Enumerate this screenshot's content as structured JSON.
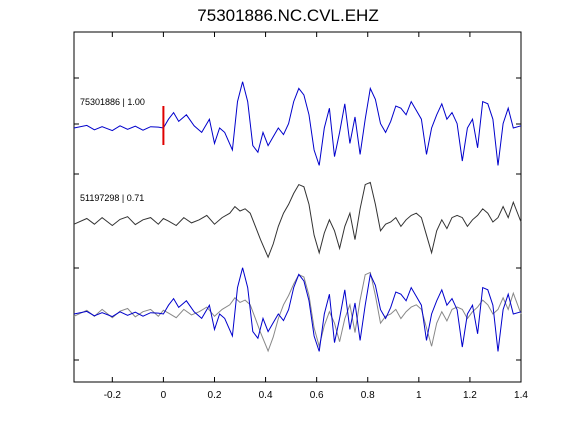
{
  "chart_data": {
    "type": "line",
    "title": "75301886.NC.CVL.EHZ",
    "xlim": [
      -0.35,
      1.4
    ],
    "x_ticks": [
      "-0.2",
      "0",
      "0.2",
      "0.4",
      "0.6",
      "0.8",
      "1",
      "1.2",
      "1.4"
    ],
    "x_tick_values": [
      -0.2,
      0,
      0.2,
      0.4,
      0.6,
      0.8,
      1.0,
      1.2,
      1.4
    ],
    "grid": false,
    "pick_marker": {
      "x": 0,
      "color": "#e00000"
    },
    "colors": {
      "master": "#0000cc",
      "correlated": "#333333",
      "overlay_gray": "#888888",
      "pick": "#e00000"
    },
    "traces": [
      {
        "label": "75301886 | 1.00",
        "color": "#0000cc",
        "x": [
          -0.35,
          -0.3,
          -0.27,
          -0.24,
          -0.2,
          -0.17,
          -0.14,
          -0.11,
          -0.08,
          -0.05,
          -0.02,
          0.0,
          0.02,
          0.04,
          0.06,
          0.09,
          0.12,
          0.15,
          0.18,
          0.2,
          0.22,
          0.24,
          0.27,
          0.29,
          0.31,
          0.33,
          0.35,
          0.37,
          0.39,
          0.41,
          0.43,
          0.45,
          0.47,
          0.49,
          0.51,
          0.53,
          0.55,
          0.57,
          0.59,
          0.61,
          0.63,
          0.65,
          0.67,
          0.69,
          0.71,
          0.73,
          0.75,
          0.77,
          0.79,
          0.81,
          0.83,
          0.85,
          0.87,
          0.89,
          0.91,
          0.93,
          0.95,
          0.97,
          0.99,
          1.01,
          1.03,
          1.05,
          1.07,
          1.09,
          1.11,
          1.13,
          1.15,
          1.17,
          1.19,
          1.21,
          1.23,
          1.25,
          1.27,
          1.29,
          1.31,
          1.33,
          1.35,
          1.37,
          1.4
        ],
        "y": [
          0.0,
          0.06,
          -0.04,
          0.03,
          -0.06,
          0.05,
          -0.03,
          0.04,
          -0.05,
          0.03,
          0.02,
          0.0,
          0.2,
          0.35,
          0.15,
          0.3,
          0.05,
          -0.1,
          0.2,
          -0.35,
          0.0,
          -0.1,
          -0.5,
          0.6,
          1.05,
          0.6,
          -0.4,
          -0.55,
          -0.1,
          -0.4,
          -0.2,
          0.0,
          -0.15,
          0.1,
          0.6,
          0.9,
          0.75,
          0.3,
          -0.5,
          -0.85,
          0.0,
          0.45,
          -0.65,
          -0.1,
          0.55,
          -0.35,
          0.25,
          -0.6,
          0.2,
          0.9,
          0.65,
          0.1,
          -0.1,
          0.15,
          0.5,
          0.45,
          0.3,
          0.6,
          0.4,
          0.2,
          -0.6,
          0.0,
          0.3,
          0.55,
          0.2,
          0.35,
          0.1,
          -0.75,
          0.0,
          0.2,
          -0.45,
          0.6,
          0.55,
          0.2,
          -0.85,
          0.1,
          0.45,
          0.0,
          0.05
        ]
      },
      {
        "label": "51197298 | 0.71",
        "color": "#333333",
        "x": [
          -0.35,
          -0.3,
          -0.27,
          -0.24,
          -0.2,
          -0.17,
          -0.14,
          -0.11,
          -0.08,
          -0.05,
          -0.02,
          0.0,
          0.02,
          0.05,
          0.08,
          0.11,
          0.14,
          0.17,
          0.2,
          0.23,
          0.26,
          0.28,
          0.3,
          0.32,
          0.34,
          0.36,
          0.38,
          0.41,
          0.43,
          0.45,
          0.47,
          0.49,
          0.51,
          0.53,
          0.55,
          0.57,
          0.59,
          0.61,
          0.63,
          0.65,
          0.67,
          0.69,
          0.71,
          0.73,
          0.75,
          0.77,
          0.79,
          0.81,
          0.83,
          0.85,
          0.87,
          0.89,
          0.91,
          0.93,
          0.95,
          0.97,
          0.99,
          1.01,
          1.03,
          1.05,
          1.07,
          1.09,
          1.11,
          1.13,
          1.15,
          1.17,
          1.19,
          1.21,
          1.23,
          1.25,
          1.27,
          1.29,
          1.31,
          1.33,
          1.35,
          1.37,
          1.4
        ],
        "y": [
          -0.05,
          0.08,
          -0.05,
          0.1,
          -0.08,
          0.06,
          0.12,
          -0.06,
          0.05,
          0.1,
          -0.05,
          0.08,
          0.02,
          -0.08,
          0.1,
          -0.02,
          0.05,
          0.15,
          -0.05,
          0.1,
          0.2,
          0.35,
          0.25,
          0.3,
          0.2,
          -0.1,
          -0.4,
          -0.8,
          -0.5,
          -0.1,
          0.2,
          0.4,
          0.65,
          0.85,
          0.8,
          0.4,
          -0.3,
          -0.7,
          -0.25,
          0.05,
          -0.2,
          -0.6,
          -0.1,
          0.2,
          -0.4,
          0.3,
          0.85,
          0.9,
          0.4,
          -0.2,
          -0.05,
          0.0,
          0.1,
          -0.1,
          0.05,
          0.15,
          0.2,
          0.1,
          -0.3,
          -0.7,
          -0.2,
          0.05,
          -0.15,
          0.1,
          0.15,
          0.1,
          -0.1,
          0.05,
          0.15,
          0.3,
          0.2,
          0.0,
          0.1,
          0.35,
          0.1,
          0.45,
          0.0
        ]
      }
    ]
  }
}
